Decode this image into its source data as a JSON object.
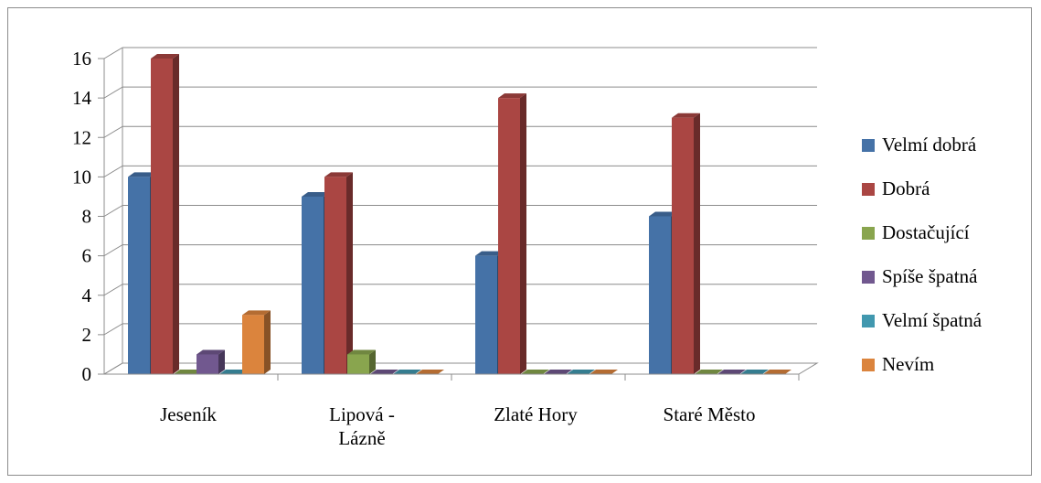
{
  "chart_data": {
    "type": "bar",
    "title": "",
    "xlabel": "",
    "ylabel": "",
    "ylim": [
      0,
      16
    ],
    "yticks": [
      0,
      2,
      4,
      6,
      8,
      10,
      12,
      14,
      16
    ],
    "grid": true,
    "legend_position": "right",
    "categories": [
      [
        "Jeseník"
      ],
      [
        "Lipová -",
        "Lázně"
      ],
      [
        "Zlaté Hory"
      ],
      [
        "Staré Město"
      ]
    ],
    "series": [
      {
        "name": "Velmí dobrá",
        "color": "#4572A7",
        "values": [
          10,
          9,
          6,
          8
        ]
      },
      {
        "name": "Dobrá",
        "color": "#AA4643",
        "values": [
          16,
          10,
          14,
          13
        ]
      },
      {
        "name": "Dostačující",
        "color": "#89A54E",
        "values": [
          0,
          1,
          0,
          0
        ]
      },
      {
        "name": "Spíše špatná",
        "color": "#71588F",
        "values": [
          1,
          0,
          0,
          0
        ]
      },
      {
        "name": "Velmí špatná",
        "color": "#4198AF",
        "values": [
          0,
          0,
          0,
          0
        ]
      },
      {
        "name": "Nevím",
        "color": "#DB843D",
        "values": [
          3,
          0,
          0,
          0
        ]
      }
    ]
  }
}
